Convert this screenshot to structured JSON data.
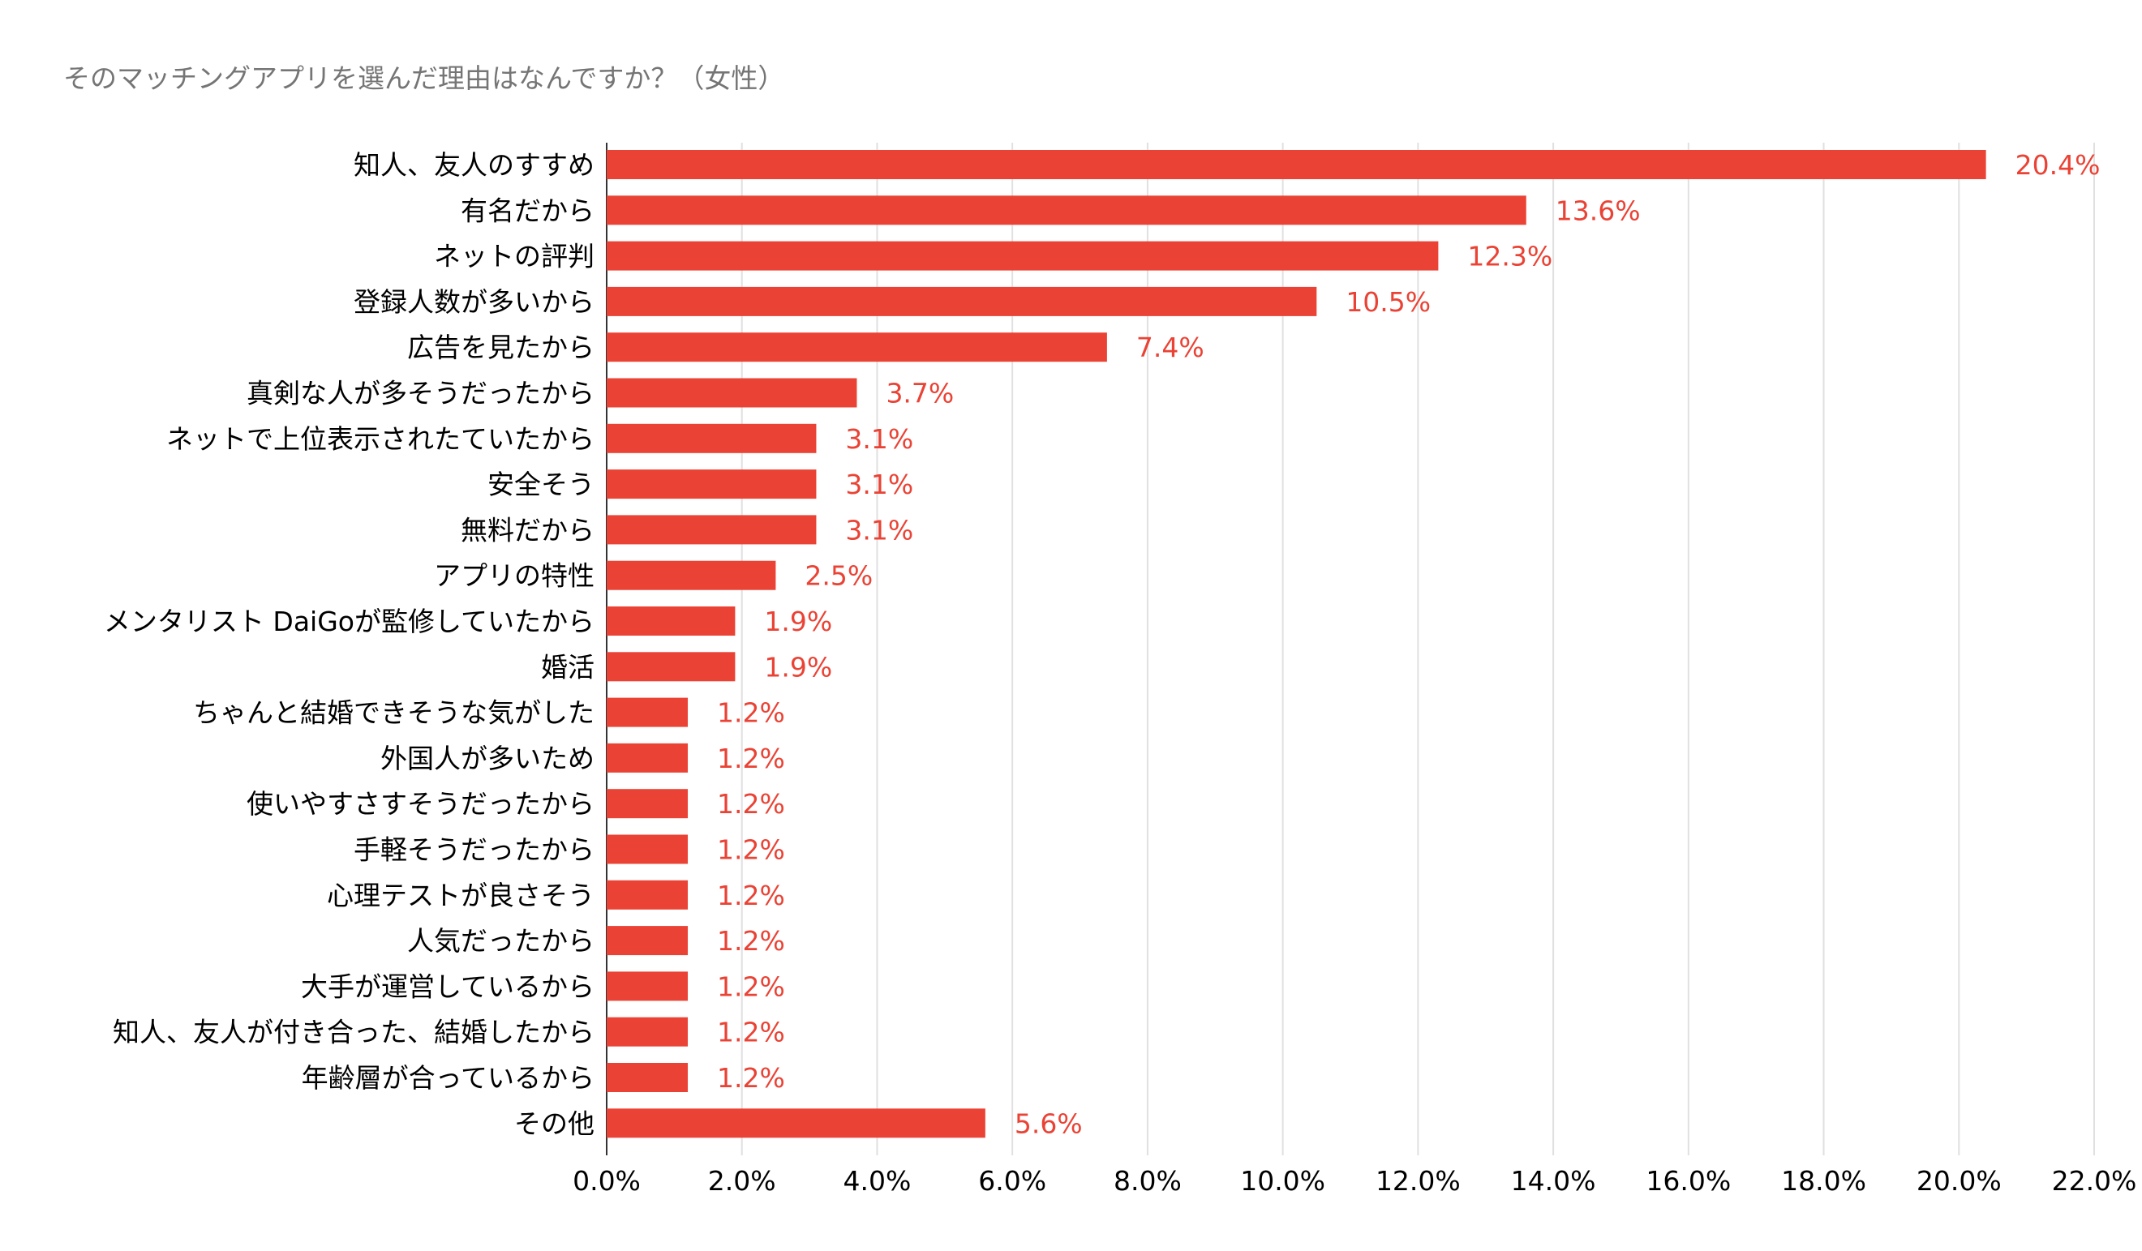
{
  "colors": {
    "bar": "#ea4335",
    "value_label": "#ea4335",
    "category_label": "#000000",
    "tick_label": "#000000",
    "grid": "#e0e0e0",
    "title": "#757575"
  },
  "chart_data": {
    "type": "bar",
    "orientation": "horizontal",
    "title": "そのマッチングアプリを選んだ理由はなんですか？（女性）",
    "xlabel": "",
    "ylabel": "",
    "xlim": [
      0,
      22
    ],
    "grid": true,
    "legend": "none",
    "x_ticks": [
      "0.0%",
      "2.0%",
      "4.0%",
      "6.0%",
      "8.0%",
      "10.0%",
      "12.0%",
      "14.0%",
      "16.0%",
      "18.0%",
      "20.0%",
      "22.0%"
    ],
    "categories": [
      "知人、友人のすすめ",
      "有名だから",
      "ネットの評判",
      "登録人数が多いから",
      "広告を見たから",
      "真剣な人が多そうだったから",
      "ネットで上位表示されたていたから",
      "安全そう",
      "無料だから",
      "アプリの特性",
      "メンタリスト DaiGoが監修していたから",
      "婚活",
      "ちゃんと結婚できそうな気がした",
      "外国人が多いため",
      "使いやすさすそうだったから",
      "手軽そうだったから",
      "心理テストが良さそう",
      "人気だったから",
      "大手が運営しているから",
      "知人、友人が付き合った、結婚したから",
      "年齢層が合っているから",
      "その他"
    ],
    "values": [
      20.4,
      13.6,
      12.3,
      10.5,
      7.4,
      3.7,
      3.1,
      3.1,
      3.1,
      2.5,
      1.9,
      1.9,
      1.2,
      1.2,
      1.2,
      1.2,
      1.2,
      1.2,
      1.2,
      1.2,
      1.2,
      5.6
    ],
    "value_labels": [
      "20.4%",
      "13.6%",
      "12.3%",
      "10.5%",
      "7.4%",
      "3.7%",
      "3.1%",
      "3.1%",
      "3.1%",
      "2.5%",
      "1.9%",
      "1.9%",
      "1.2%",
      "1.2%",
      "1.2%",
      "1.2%",
      "1.2%",
      "1.2%",
      "1.2%",
      "1.2%",
      "1.2%",
      "5.6%"
    ]
  }
}
